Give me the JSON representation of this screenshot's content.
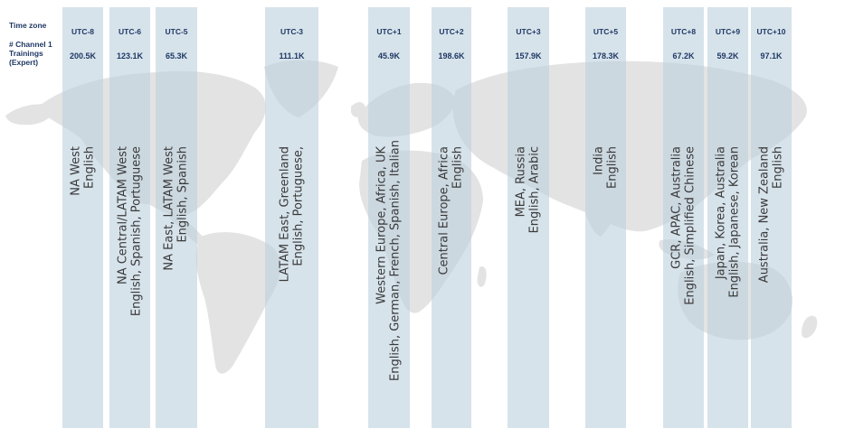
{
  "labels": {
    "time_zone": "Time zone",
    "trainings_line1": "# Channel 1",
    "trainings_line2": "Trainings",
    "trainings_line3": "(Expert)"
  },
  "colors": {
    "band": "#bed2de",
    "map": "#e3e3e3",
    "heading": "#1f3864",
    "text": "#3a3a3a"
  },
  "regions": [
    {
      "tz": "UTC-8",
      "count": "200.5K",
      "line1": "NA West",
      "line2": "English"
    },
    {
      "tz": "UTC-6",
      "count": "123.1K",
      "line1": "NA Central/LATAM West",
      "line2": "English, Spanish, Portuguese"
    },
    {
      "tz": "UTC-5",
      "count": "65.3K",
      "line1": "NA East, LATAM West",
      "line2": "English, Spanish"
    },
    {
      "tz": "UTC-3",
      "count": "111.1K",
      "line1": "LATAM East, Greenland",
      "line2": "English, Portuguese,"
    },
    {
      "tz": "UTC+1",
      "count": "45.9K",
      "line1": "Western Europe, Africa, UK",
      "line2": "English, German, French, Spanish, Italian"
    },
    {
      "tz": "UTC+2",
      "count": "198.6K",
      "line1": "Central Europe, Africa",
      "line2": "English"
    },
    {
      "tz": "UTC+3",
      "count": "157.9K",
      "line1": "MEA, Russia",
      "line2": "English, Arabic"
    },
    {
      "tz": "UTC+5",
      "count": "178.3K",
      "line1": "India",
      "line2": "English"
    },
    {
      "tz": "UTC+8",
      "count": "67.2K",
      "line1": "GCR, APAC, Australia",
      "line2": "English, Simplified Chinese"
    },
    {
      "tz": "UTC+9",
      "count": "59.2K",
      "line1": "Japan, Korea, Australia",
      "line2": "English, Japanese, Korean"
    },
    {
      "tz": "UTC+10",
      "count": "97.1K",
      "line1": "Australia, New Zealand",
      "line2": "English"
    }
  ]
}
